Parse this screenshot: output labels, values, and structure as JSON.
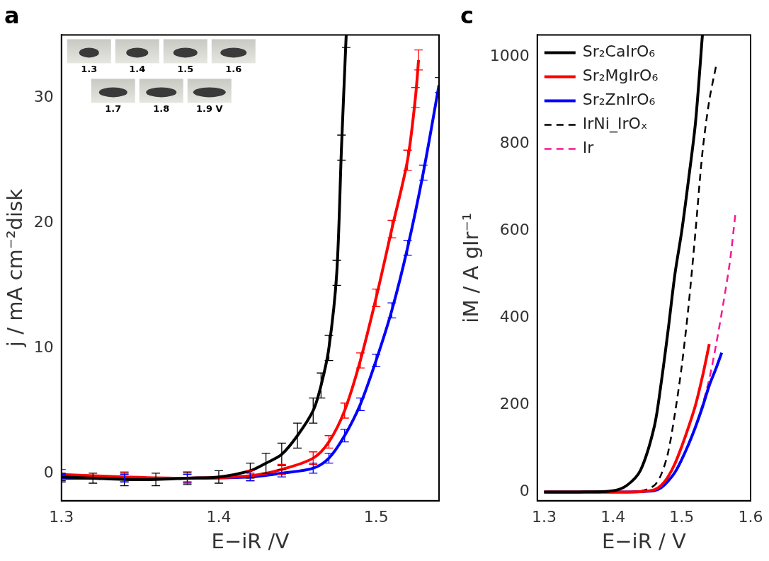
{
  "chart_data": [
    {
      "type": "line",
      "title": "a",
      "x_label": "E−iR /V",
      "y_label": "j / mA cm⁻²disk",
      "xlim": [
        1.3,
        1.54
      ],
      "ylim": [
        -2.2,
        35
      ],
      "xticks": [
        1.3,
        1.4,
        1.5
      ],
      "yticks": [
        0,
        10,
        20,
        30
      ],
      "grid": false,
      "annotations": [
        "1.3",
        "1.4",
        "1.5",
        "1.6",
        "1.7",
        "1.8",
        "1.9 V"
      ],
      "series": [
        {
          "color": "#000000",
          "line_style": "solid",
          "x": [
            1.3,
            1.32,
            1.34,
            1.36,
            1.38,
            1.4,
            1.42,
            1.43,
            1.44,
            1.45,
            1.46,
            1.465,
            1.47,
            1.475,
            1.478,
            1.481
          ],
          "values": [
            -0.3,
            -0.4,
            -0.5,
            -0.5,
            -0.4,
            -0.3,
            0.2,
            0.8,
            1.5,
            3,
            5,
            7,
            10,
            16,
            26,
            35
          ],
          "errors": [
            0.3,
            0.4,
            0.5,
            0.5,
            0.5,
            0.5,
            0.6,
            0.8,
            0.9,
            1.0,
            1.0,
            1.0,
            1.0,
            1.0,
            1.0,
            1.0
          ]
        },
        {
          "color": "#ff0000",
          "line_style": "solid",
          "x": [
            1.3,
            1.34,
            1.38,
            1.42,
            1.44,
            1.46,
            1.47,
            1.48,
            1.49,
            1.5,
            1.51,
            1.52,
            1.525,
            1.527
          ],
          "values": [
            -0.1,
            -0.3,
            -0.4,
            -0.2,
            0.3,
            1.2,
            2.5,
            5,
            9,
            14,
            19.5,
            25,
            30,
            33
          ],
          "errors": [
            0.4,
            0.4,
            0.4,
            0.4,
            0.4,
            0.5,
            0.5,
            0.6,
            0.6,
            0.7,
            0.7,
            0.8,
            0.8,
            0.8
          ]
        },
        {
          "color": "#0000ff",
          "line_style": "solid",
          "x": [
            1.3,
            1.34,
            1.38,
            1.42,
            1.44,
            1.46,
            1.47,
            1.48,
            1.49,
            1.5,
            1.51,
            1.52,
            1.53,
            1.54
          ],
          "values": [
            -0.4,
            -0.4,
            -0.4,
            -0.3,
            0,
            0.4,
            1.2,
            3,
            5.5,
            9,
            13,
            18,
            24,
            31
          ],
          "errors": [
            0.3,
            0.3,
            0.3,
            0.3,
            0.3,
            0.4,
            0.4,
            0.5,
            0.5,
            0.5,
            0.6,
            0.6,
            0.6,
            0.6
          ]
        }
      ]
    },
    {
      "type": "line",
      "title": "c",
      "x_label": "E−iR / V",
      "y_label": "iM / A gIr⁻¹",
      "xlim": [
        1.29,
        1.6
      ],
      "ylim": [
        -20,
        1050
      ],
      "xticks": [
        1.3,
        1.4,
        1.5,
        1.6
      ],
      "yticks": [
        0,
        200,
        400,
        600,
        800,
        1000
      ],
      "grid": false,
      "legend": "upper left",
      "series": [
        {
          "name": "Sr₂CaIrO₆",
          "color": "#000000",
          "line_style": "solid",
          "x": [
            1.3,
            1.35,
            1.4,
            1.42,
            1.44,
            1.46,
            1.47,
            1.48,
            1.49,
            1.5,
            1.51,
            1.52,
            1.53
          ],
          "values": [
            0,
            0,
            3,
            15,
            50,
            150,
            250,
            370,
            500,
            600,
            720,
            850,
            1050
          ]
        },
        {
          "name": "Sr₂MgIrO₆",
          "color": "#ff0000",
          "line_style": "solid",
          "x": [
            1.3,
            1.4,
            1.44,
            1.46,
            1.47,
            1.48,
            1.49,
            1.5,
            1.51,
            1.52,
            1.53,
            1.54
          ],
          "values": [
            0,
            0,
            1,
            5,
            15,
            35,
            65,
            105,
            150,
            200,
            265,
            340
          ]
        },
        {
          "name": "Sr₂ZnIrO₆",
          "color": "#0000ff",
          "line_style": "solid",
          "x": [
            1.3,
            1.4,
            1.44,
            1.46,
            1.47,
            1.48,
            1.49,
            1.5,
            1.51,
            1.52,
            1.53,
            1.54,
            1.55,
            1.558
          ],
          "values": [
            0,
            0,
            1,
            3,
            10,
            25,
            45,
            75,
            110,
            150,
            195,
            245,
            285,
            320
          ]
        },
        {
          "name": "IrNi_IrOₓ",
          "color": "#000000",
          "line_style": "dashed",
          "x": [
            1.3,
            1.4,
            1.44,
            1.46,
            1.47,
            1.48,
            1.49,
            1.5,
            1.51,
            1.52,
            1.53,
            1.54,
            1.55
          ],
          "values": [
            0,
            0,
            2,
            15,
            40,
            90,
            180,
            290,
            430,
            600,
            780,
            900,
            980
          ]
        },
        {
          "name": "Ir",
          "color": "#ff1493",
          "line_style": "dashed",
          "x": [
            1.3,
            1.4,
            1.44,
            1.46,
            1.47,
            1.48,
            1.49,
            1.5,
            1.51,
            1.52,
            1.53,
            1.54,
            1.55,
            1.56,
            1.57,
            1.578
          ],
          "values": [
            0,
            0,
            1,
            3,
            10,
            25,
            45,
            75,
            110,
            150,
            200,
            260,
            340,
            430,
            530,
            640
          ]
        }
      ]
    }
  ]
}
